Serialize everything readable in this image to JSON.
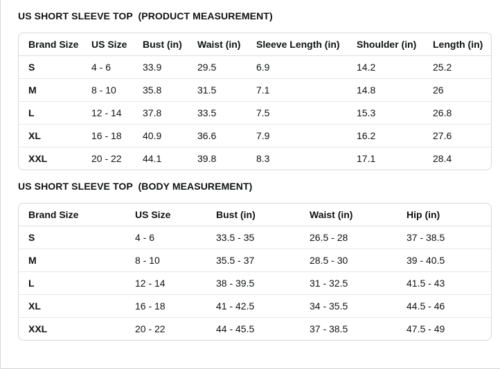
{
  "panel": {
    "kind": "size-chart"
  },
  "colors": {
    "text": "#0f1111",
    "table_border": "#d5d9d9",
    "row_divider": "#e7e7e7",
    "background": "#ffffff"
  },
  "tables": [
    {
      "title": "US SHORT SLEEVE TOP  (PRODUCT MEASUREMENT)",
      "columns": [
        "Brand Size",
        "US Size",
        "Bust (in)",
        "Waist (in)",
        "Sleeve Length (in)",
        "Shoulder (in)",
        "Length (in)"
      ],
      "rows": [
        [
          "S",
          "4 - 6",
          "33.9",
          "29.5",
          "6.9",
          "14.2",
          "25.2"
        ],
        [
          "M",
          "8 - 10",
          "35.8",
          "31.5",
          "7.1",
          "14.8",
          "26"
        ],
        [
          "L",
          "12 - 14",
          "37.8",
          "33.5",
          "7.5",
          "15.3",
          "26.8"
        ],
        [
          "XL",
          "16 - 18",
          "40.9",
          "36.6",
          "7.9",
          "16.2",
          "27.6"
        ],
        [
          "XXL",
          "20 - 22",
          "44.1",
          "39.8",
          "8.3",
          "17.1",
          "28.4"
        ]
      ]
    },
    {
      "title": "US SHORT SLEEVE TOP  (BODY MEASUREMENT)",
      "columns": [
        "Brand Size",
        "US Size",
        "Bust (in)",
        "Waist (in)",
        "Hip (in)"
      ],
      "rows": [
        [
          "S",
          "4 - 6",
          "33.5 - 35",
          "26.5 - 28",
          "37 - 38.5"
        ],
        [
          "M",
          "8 - 10",
          "35.5 - 37",
          "28.5 - 30",
          "39 - 40.5"
        ],
        [
          "L",
          "12 - 14",
          "38 - 39.5",
          "31 - 32.5",
          "41.5 - 43"
        ],
        [
          "XL",
          "16 - 18",
          "41 - 42.5",
          "34 - 35.5",
          "44.5 - 46"
        ],
        [
          "XXL",
          "20 - 22",
          "44 - 45.5",
          "37 - 38.5",
          "47.5 - 49"
        ]
      ]
    }
  ]
}
